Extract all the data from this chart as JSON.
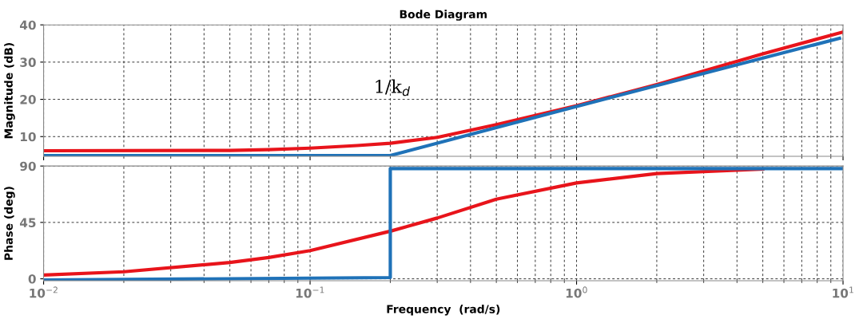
{
  "chart_data": [
    {
      "type": "line",
      "title": "Bode Diagram",
      "ylabel": "Magnitude (dB)",
      "log": "x",
      "grid": true,
      "tick_labels": "y",
      "line_style": "solid",
      "marker": "none",
      "xlim": [
        0.01,
        10
      ],
      "xticks": [
        0.01,
        0.1,
        1,
        10
      ],
      "ylim": [
        4.7,
        40
      ],
      "yticks": [
        10,
        20,
        30,
        40
      ],
      "annotations": [
        "1/k$_{d}$"
      ],
      "series": [
        {
          "color": "#e8141b",
          "x": [
            0.01,
            0.05,
            0.07,
            0.1,
            0.15,
            0.2,
            0.3,
            0.5,
            1,
            2,
            5,
            10
          ],
          "values": [
            6.2,
            6.3,
            6.5,
            6.9,
            7.6,
            8.2,
            9.8,
            13.2,
            18.3,
            24,
            32.2,
            38.1
          ]
        },
        {
          "color": "#1f72b8",
          "x": [
            0.01,
            0.2,
            1,
            9.7
          ],
          "values": [
            4.9,
            4.9,
            18.1,
            36.4
          ]
        }
      ]
    },
    {
      "type": "line",
      "xlabel": "Frequency  (rad/s)",
      "ylabel": "Phase (deg)",
      "log": "x",
      "grid": true,
      "line_style": "solid",
      "marker": "none",
      "xlim": [
        0.01,
        10
      ],
      "xticks": [
        {
          "value": 0.01,
          "label": "10$^{−2}$"
        },
        {
          "value": 0.1,
          "label": "10$^{−1}$"
        },
        {
          "value": 1,
          "label": "10$^{0}$"
        },
        {
          "value": 10,
          "label": "10$^{1}$"
        }
      ],
      "ylim": [
        -1.5,
        90
      ],
      "yticks": [
        0,
        45,
        90
      ],
      "series": [
        {
          "color": "#e8141b",
          "x": [
            0.01,
            0.02,
            0.05,
            0.07,
            0.1,
            0.2,
            0.3,
            0.5,
            1,
            2,
            5
          ],
          "values": [
            3,
            5.6,
            13,
            17,
            22.5,
            38,
            48.5,
            63.5,
            76.5,
            84,
            87.5
          ]
        },
        {
          "color": "#1f72b8",
          "x": [
            0.01,
            0.2,
            0.2,
            10
          ],
          "values": [
            -1,
            1,
            88,
            88
          ]
        }
      ]
    }
  ]
}
